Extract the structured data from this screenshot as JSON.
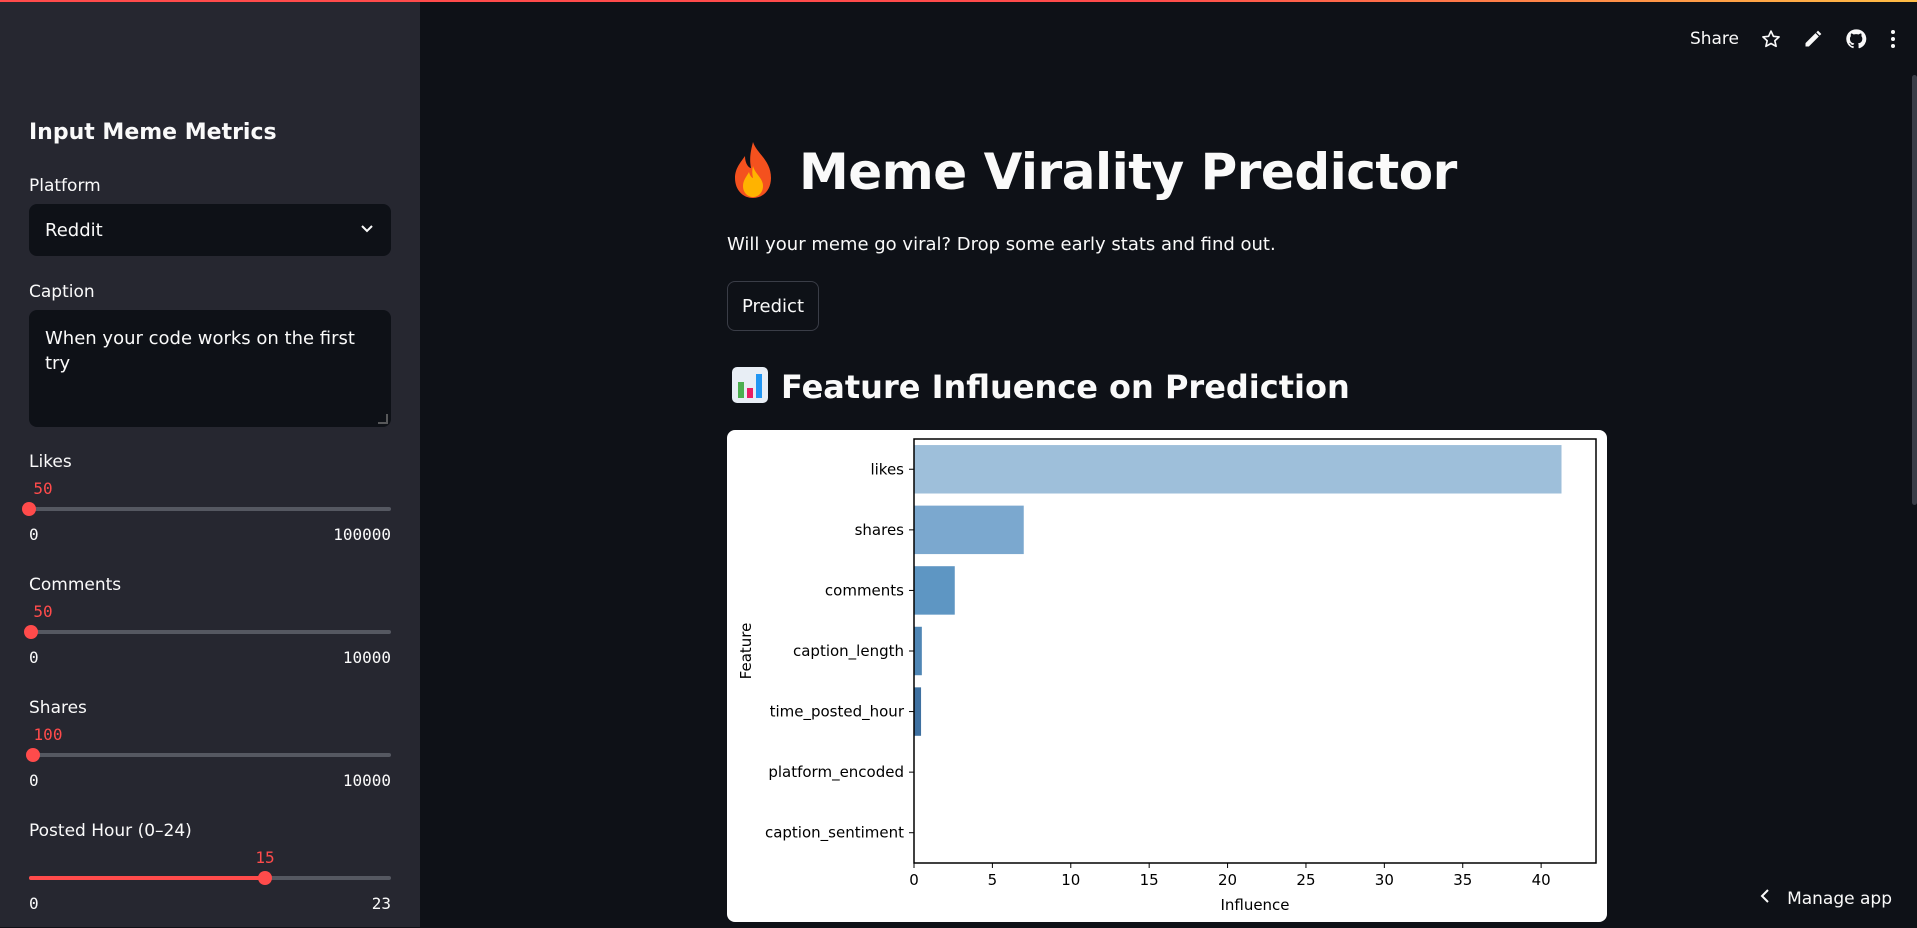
{
  "header": {
    "share_label": "Share",
    "icons": [
      "star-icon",
      "edit-icon",
      "github-icon",
      "more-icon"
    ]
  },
  "sidebar": {
    "title": "Input Meme Metrics",
    "platform": {
      "label": "Platform",
      "value": "Reddit"
    },
    "caption": {
      "label": "Caption",
      "value": "When your code works on the first try"
    },
    "likes": {
      "label": "Likes",
      "value": "50",
      "min": "0",
      "max": "100000",
      "fraction": 0.0005
    },
    "comments": {
      "label": "Comments",
      "value": "50",
      "min": "0",
      "max": "10000",
      "fraction": 0.005
    },
    "shares": {
      "label": "Shares",
      "value": "100",
      "min": "0",
      "max": "10000",
      "fraction": 0.01
    },
    "posted_hour": {
      "label": "Posted Hour (0–24)",
      "value": "15",
      "min": "0",
      "max": "23",
      "fraction": 0.652
    }
  },
  "main": {
    "title_icon": "fire-icon",
    "title": "Meme Virality Predictor",
    "subtitle": "Will your meme go viral? Drop some early stats and find out.",
    "predict_label": "Predict",
    "section_icon": "bar-chart-icon",
    "section_title": "Feature Influence on Prediction"
  },
  "footer": {
    "manage_label": "Manage app"
  },
  "colors": {
    "accent": "#ff4b4b",
    "background": "#0e1117",
    "sidebar": "#262730"
  },
  "chart_data": {
    "type": "bar",
    "orientation": "horizontal",
    "categories": [
      "likes",
      "shares",
      "comments",
      "caption_length",
      "time_posted_hour",
      "platform_encoded",
      "caption_sentiment"
    ],
    "values": [
      41.3,
      7.0,
      2.6,
      0.5,
      0.45,
      0,
      0
    ],
    "xlabel": "Influence",
    "ylabel": "Feature",
    "xlim": [
      0,
      43.5
    ],
    "xticks": [
      0,
      5,
      10,
      15,
      20,
      25,
      30,
      35,
      40
    ],
    "bar_colors": [
      "#9ebfda",
      "#7ba8cf",
      "#5e96c3",
      "#4f86b5",
      "#3e70a0",
      "#335e8b",
      "#294c75"
    ]
  }
}
